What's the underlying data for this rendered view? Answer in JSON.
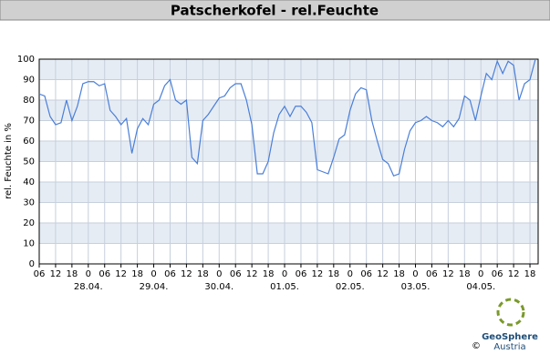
{
  "chart_data": {
    "type": "line",
    "title": "Patscherkofel - rel.Feuchte",
    "y_label": "rel. Feuchte in %",
    "x": [
      0,
      2,
      4,
      6,
      8,
      10,
      12,
      14,
      16,
      18,
      20,
      22,
      24,
      26,
      28,
      30,
      32,
      34,
      36,
      38,
      40,
      42,
      44,
      46,
      48,
      50,
      52,
      54,
      56,
      58,
      60,
      62,
      64,
      66,
      68,
      70,
      72,
      74,
      76,
      78,
      80,
      82,
      84,
      86,
      88,
      90,
      92,
      94,
      96,
      98,
      100,
      102,
      104,
      106,
      108,
      110,
      112,
      114,
      116,
      118,
      120,
      122,
      124,
      126,
      128,
      130,
      132,
      134,
      136,
      138,
      140,
      142,
      144,
      146,
      148,
      150,
      152,
      154,
      156,
      158,
      160,
      162,
      164,
      166,
      168,
      170,
      172,
      174,
      176,
      178,
      180,
      182
    ],
    "series": [
      {
        "name": "rel.Feuchte",
        "color": "#4a7fd8",
        "values": [
          83,
          82,
          72,
          68,
          69,
          80,
          70,
          77,
          88,
          89,
          89,
          87,
          88,
          75,
          72,
          68,
          71,
          54,
          66,
          71,
          68,
          78,
          80,
          87,
          90,
          80,
          78,
          80,
          52,
          49,
          70,
          73,
          77,
          81,
          82,
          86,
          88,
          88,
          80,
          68,
          44,
          44,
          50,
          64,
          73,
          77,
          72,
          77,
          77,
          74,
          69,
          46,
          45,
          44,
          52,
          61,
          63,
          75,
          83,
          86,
          85,
          70,
          60,
          51,
          49,
          43,
          44,
          56,
          65,
          69,
          70,
          72,
          70,
          69,
          67,
          70,
          67,
          71,
          82,
          80,
          70,
          82,
          93,
          90,
          99,
          93,
          99,
          97,
          80,
          88,
          90,
          100
        ]
      }
    ],
    "xlim": [
      0,
      183
    ],
    "ylim": [
      0,
      100
    ],
    "yticks": [
      0,
      10,
      20,
      30,
      40,
      50,
      60,
      70,
      80,
      90,
      100
    ],
    "xticks": [
      {
        "value": 0,
        "label": "06"
      },
      {
        "value": 6,
        "label": "12"
      },
      {
        "value": 12,
        "label": "18"
      },
      {
        "value": 18,
        "label": "0"
      },
      {
        "value": 24,
        "label": "06"
      },
      {
        "value": 30,
        "label": "12"
      },
      {
        "value": 36,
        "label": "18"
      },
      {
        "value": 42,
        "label": "0"
      },
      {
        "value": 48,
        "label": "06"
      },
      {
        "value": 54,
        "label": "12"
      },
      {
        "value": 60,
        "label": "18"
      },
      {
        "value": 66,
        "label": "0"
      },
      {
        "value": 72,
        "label": "06"
      },
      {
        "value": 78,
        "label": "12"
      },
      {
        "value": 84,
        "label": "18"
      },
      {
        "value": 90,
        "label": "0"
      },
      {
        "value": 96,
        "label": "06"
      },
      {
        "value": 102,
        "label": "12"
      },
      {
        "value": 108,
        "label": "18"
      },
      {
        "value": 114,
        "label": "0"
      },
      {
        "value": 120,
        "label": "06"
      },
      {
        "value": 126,
        "label": "12"
      },
      {
        "value": 132,
        "label": "18"
      },
      {
        "value": 138,
        "label": "0"
      },
      {
        "value": 144,
        "label": "06"
      },
      {
        "value": 150,
        "label": "12"
      },
      {
        "value": 156,
        "label": "18"
      },
      {
        "value": 162,
        "label": "0"
      },
      {
        "value": 168,
        "label": "06"
      },
      {
        "value": 174,
        "label": "12"
      },
      {
        "value": 180,
        "label": "18"
      }
    ],
    "date_ticks": [
      {
        "value": 18,
        "label": "28.04."
      },
      {
        "value": 42,
        "label": "29.04."
      },
      {
        "value": 66,
        "label": "30.04."
      },
      {
        "value": 90,
        "label": "01.05."
      },
      {
        "value": 114,
        "label": "02.05."
      },
      {
        "value": 138,
        "label": "03.05."
      },
      {
        "value": 162,
        "label": "04.05."
      }
    ],
    "grid": true
  },
  "logo": {
    "name": "GeoSphere",
    "sub": "Austria",
    "copyright": "©"
  }
}
